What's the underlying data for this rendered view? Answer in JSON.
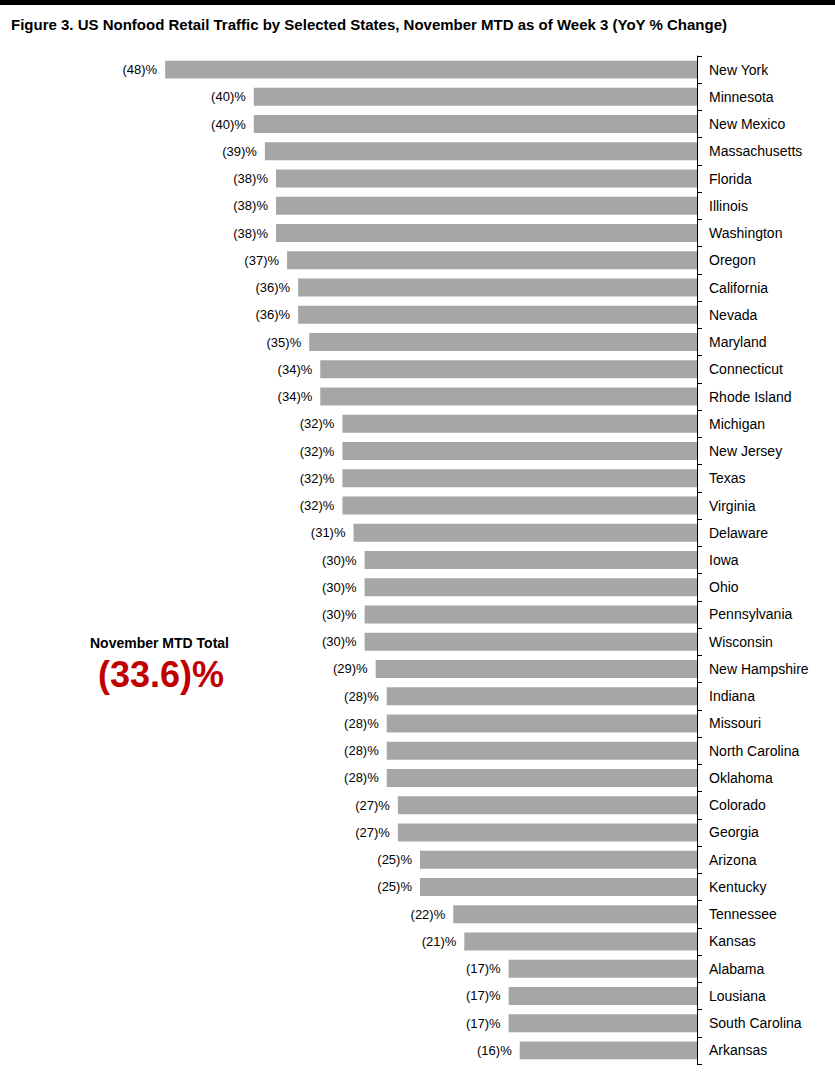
{
  "chart_data": {
    "type": "bar",
    "title": "Figure 3. US Nonfood Retail Traffic by Selected States, November MTD as of Week 3 (YoY % Change)",
    "orientation": "horizontal",
    "categories": [
      "New York",
      "Minnesota",
      "New Mexico",
      "Massachusetts",
      "Florida",
      "Illinois",
      "Washington",
      "Oregon",
      "California",
      "Nevada",
      "Maryland",
      "Connecticut",
      "Rhode Island",
      "Michigan",
      "New Jersey",
      "Texas",
      "Virginia",
      "Delaware",
      "Iowa",
      "Ohio",
      "Pennsylvania",
      "Wisconsin",
      "New Hampshire",
      "Indiana",
      "Missouri",
      "North Carolina",
      "Oklahoma",
      "Colorado",
      "Georgia",
      "Arizona",
      "Kentucky",
      "Tennessee",
      "Kansas",
      "Alabama",
      "Lousiana",
      "South Carolina",
      "Arkansas"
    ],
    "values": [
      -48,
      -40,
      -40,
      -39,
      -38,
      -38,
      -38,
      -37,
      -36,
      -36,
      -35,
      -34,
      -34,
      -32,
      -32,
      -32,
      -32,
      -31,
      -30,
      -30,
      -30,
      -30,
      -29,
      -28,
      -28,
      -28,
      -28,
      -27,
      -27,
      -25,
      -25,
      -22,
      -21,
      -17,
      -17,
      -17,
      -16
    ],
    "value_labels": [
      "(48)%",
      "(40)%",
      "(40)%",
      "(39)%",
      "(38)%",
      "(38)%",
      "(38)%",
      "(37)%",
      "(36)%",
      "(36)%",
      "(35)%",
      "(34)%",
      "(34)%",
      "(32)%",
      "(32)%",
      "(32)%",
      "(32)%",
      "(31)%",
      "(30)%",
      "(30)%",
      "(30)%",
      "(30)%",
      "(29)%",
      "(28)%",
      "(28)%",
      "(28)%",
      "(28)%",
      "(27)%",
      "(27)%",
      "(25)%",
      "(25)%",
      "(22)%",
      "(21)%",
      "(17)%",
      "(17)%",
      "(17)%",
      "(16)%"
    ],
    "color": "#a6a6a6",
    "data_labels": true,
    "xlim": [
      -50,
      0
    ],
    "xticks": [
      -50,
      0
    ],
    "tick_labels": "y",
    "grid": false,
    "annotations": [
      "November MTD Total",
      "(33.6)%"
    ]
  }
}
